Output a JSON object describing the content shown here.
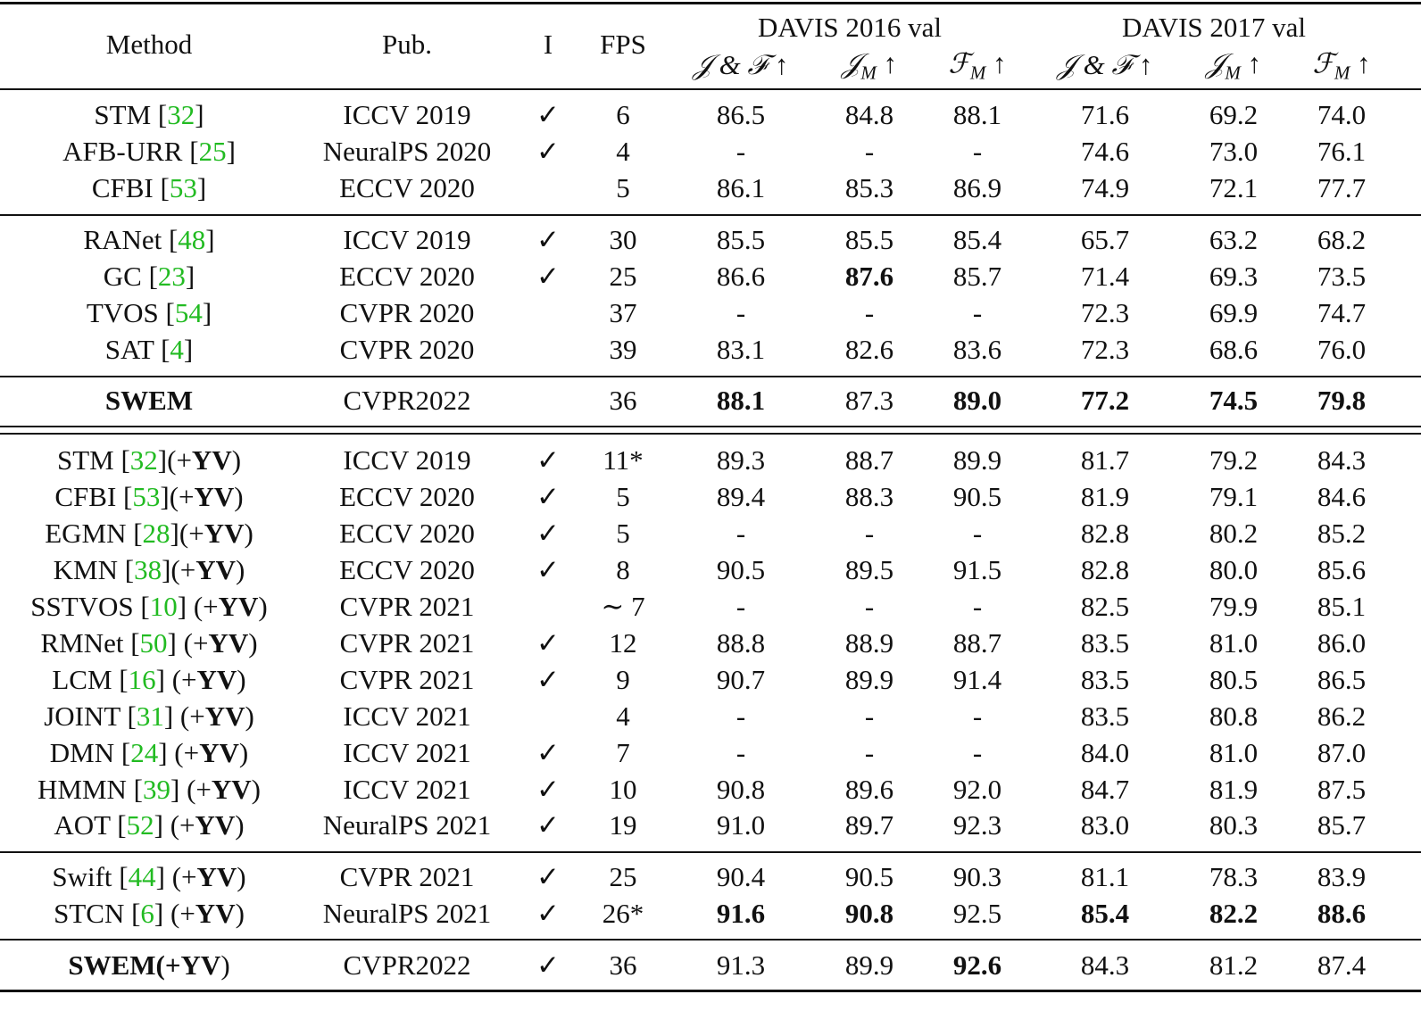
{
  "header": {
    "method": "Method",
    "pub": "Pub.",
    "i": "I",
    "fps": "FPS",
    "davis2016": "DAVIS 2016 val",
    "davis2017": "DAVIS 2017 val",
    "jf": "𝒥 & ℱ ↑",
    "j_base": "𝒥",
    "f_base": "ℱ",
    "m_sub": "M",
    "arrow": "↑"
  },
  "check_glyph": "✓",
  "yv_tag": "YV",
  "groups": [
    {
      "rows": [
        {
          "name": "STM",
          "cite": "32",
          "yv": "",
          "pub": "ICCV 2019",
          "i": true,
          "fps": "6",
          "v": [
            "86.5",
            "84.8",
            "88.1",
            "71.6",
            "69.2",
            "74.0"
          ],
          "bold": []
        },
        {
          "name": "AFB-URR",
          "cite": "25",
          "yv": "",
          "pub": "NeuralPS 2020",
          "i": true,
          "fps": "4",
          "v": [
            "-",
            "-",
            "-",
            "74.6",
            "73.0",
            "76.1"
          ],
          "bold": []
        },
        {
          "name": "CFBI",
          "cite": "53",
          "yv": "",
          "pub": "ECCV 2020",
          "i": false,
          "fps": "5",
          "v": [
            "86.1",
            "85.3",
            "86.9",
            "74.9",
            "72.1",
            "77.7"
          ],
          "bold": []
        }
      ]
    },
    {
      "rows": [
        {
          "name": "RANet",
          "cite": "48",
          "yv": "",
          "pub": "ICCV 2019",
          "i": true,
          "fps": "30",
          "v": [
            "85.5",
            "85.5",
            "85.4",
            "65.7",
            "63.2",
            "68.2"
          ],
          "bold": []
        },
        {
          "name": "GC",
          "cite": "23",
          "yv": "",
          "pub": "ECCV 2020",
          "i": true,
          "fps": "25",
          "v": [
            "86.6",
            "87.6",
            "85.7",
            "71.4",
            "69.3",
            "73.5"
          ],
          "bold": [
            1
          ]
        },
        {
          "name": "TVOS",
          "cite": "54",
          "yv": "",
          "pub": "CVPR 2020",
          "i": false,
          "fps": "37",
          "v": [
            "-",
            "-",
            "-",
            "72.3",
            "69.9",
            "74.7"
          ],
          "bold": []
        },
        {
          "name": "SAT",
          "cite": "4",
          "yv": "",
          "pub": "CVPR 2020",
          "i": false,
          "fps": "39",
          "v": [
            "83.1",
            "82.6",
            "83.6",
            "72.3",
            "68.6",
            "76.0"
          ],
          "bold": []
        }
      ]
    },
    {
      "rows": [
        {
          "name": "SWEM",
          "cite": "",
          "yv": "",
          "bold_name": true,
          "pub": "CVPR2022",
          "i": false,
          "fps": "36",
          "v": [
            "88.1",
            "87.3",
            "89.0",
            "77.2",
            "74.5",
            "79.8"
          ],
          "bold": [
            0,
            2,
            3,
            4,
            5
          ]
        }
      ]
    },
    {
      "rows": [
        {
          "name": "STM",
          "cite": "32",
          "yv": "tight",
          "pub": "ICCV 2019",
          "i": true,
          "fps": "11*",
          "v": [
            "89.3",
            "88.7",
            "89.9",
            "81.7",
            "79.2",
            "84.3"
          ],
          "bold": []
        },
        {
          "name": "CFBI",
          "cite": "53",
          "yv": "tight",
          "pub": "ECCV 2020",
          "i": true,
          "fps": "5",
          "v": [
            "89.4",
            "88.3",
            "90.5",
            "81.9",
            "79.1",
            "84.6"
          ],
          "bold": []
        },
        {
          "name": "EGMN",
          "cite": "28",
          "yv": "tight",
          "pub": "ECCV 2020",
          "i": true,
          "fps": "5",
          "v": [
            "-",
            "-",
            "-",
            "82.8",
            "80.2",
            "85.2"
          ],
          "bold": []
        },
        {
          "name": "KMN",
          "cite": "38",
          "yv": "tight",
          "pub": "ECCV 2020",
          "i": true,
          "fps": "8",
          "v": [
            "90.5",
            "89.5",
            "91.5",
            "82.8",
            "80.0",
            "85.6"
          ],
          "bold": []
        },
        {
          "name": "SSTVOS",
          "cite": "10",
          "yv": "space",
          "pub": "CVPR 2021",
          "i": false,
          "fps": "∼ 7",
          "v": [
            "-",
            "-",
            "-",
            "82.5",
            "79.9",
            "85.1"
          ],
          "bold": []
        },
        {
          "name": "RMNet",
          "cite": "50",
          "yv": "space",
          "pub": "CVPR 2021",
          "i": true,
          "fps": "12",
          "v": [
            "88.8",
            "88.9",
            "88.7",
            "83.5",
            "81.0",
            "86.0"
          ],
          "bold": []
        },
        {
          "name": "LCM",
          "cite": "16",
          "yv": "space",
          "pub": "CVPR 2021",
          "i": true,
          "fps": "9",
          "v": [
            "90.7",
            "89.9",
            "91.4",
            "83.5",
            "80.5",
            "86.5"
          ],
          "bold": []
        },
        {
          "name": "JOINT",
          "cite": "31",
          "yv": "space",
          "pub": "ICCV 2021",
          "i": false,
          "fps": "4",
          "v": [
            "-",
            "-",
            "-",
            "83.5",
            "80.8",
            "86.2"
          ],
          "bold": []
        },
        {
          "name": "DMN",
          "cite": "24",
          "yv": "space",
          "pub": "ICCV 2021",
          "i": true,
          "fps": "7",
          "v": [
            "-",
            "-",
            "-",
            "84.0",
            "81.0",
            "87.0"
          ],
          "bold": []
        },
        {
          "name": "HMMN",
          "cite": "39",
          "yv": "space",
          "pub": "ICCV 2021",
          "i": true,
          "fps": "10",
          "v": [
            "90.8",
            "89.6",
            "92.0",
            "84.7",
            "81.9",
            "87.5"
          ],
          "bold": []
        },
        {
          "name": "AOT",
          "cite": "52",
          "yv": "space",
          "pub": "NeuralPS 2021",
          "i": true,
          "fps": "19",
          "v": [
            "91.0",
            "89.7",
            "92.3",
            "83.0",
            "80.3",
            "85.7"
          ],
          "bold": []
        }
      ]
    },
    {
      "rows": [
        {
          "name": "Swift",
          "cite": "44",
          "yv": "space",
          "pub": "CVPR 2021",
          "i": true,
          "fps": "25",
          "v": [
            "90.4",
            "90.5",
            "90.3",
            "81.1",
            "78.3",
            "83.9"
          ],
          "bold": []
        },
        {
          "name": "STCN",
          "cite": "6",
          "yv": "space",
          "pub": "NeuralPS 2021",
          "i": true,
          "fps": "26*",
          "v": [
            "91.6",
            "90.8",
            "92.5",
            "85.4",
            "82.2",
            "88.6"
          ],
          "bold": [
            0,
            1,
            3,
            4,
            5
          ]
        }
      ]
    },
    {
      "rows": [
        {
          "name": "SWEM",
          "cite": "",
          "yv": "tight",
          "bold_name": true,
          "pub": "CVPR2022",
          "i": true,
          "fps": "36",
          "v": [
            "91.3",
            "89.9",
            "92.6",
            "84.3",
            "81.2",
            "87.4"
          ],
          "bold": [
            2
          ]
        }
      ]
    }
  ]
}
